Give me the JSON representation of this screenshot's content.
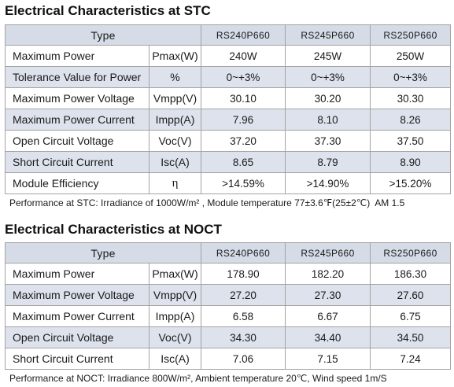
{
  "stc": {
    "title": "Electrical Characteristics at STC",
    "header": {
      "type_label": "Type",
      "models": [
        "RS240P660",
        "RS245P660",
        "RS250P660"
      ]
    },
    "rows": [
      {
        "parameter": "Maximum Power",
        "unit": "Pmax(W)",
        "values": [
          "240W",
          "245W",
          "250W"
        ]
      },
      {
        "parameter": "Tolerance Value for Power",
        "unit": "%",
        "values": [
          "0~+3%",
          "0~+3%",
          "0~+3%"
        ]
      },
      {
        "parameter": "Maximum Power Voltage",
        "unit": "Vmpp(V)",
        "values": [
          "30.10",
          "30.20",
          "30.30"
        ]
      },
      {
        "parameter": "Maximum Power Current",
        "unit": "Impp(A)",
        "values": [
          "7.96",
          "8.10",
          "8.26"
        ]
      },
      {
        "parameter": "Open Circuit Voltage",
        "unit": "Voc(V)",
        "values": [
          "37.20",
          "37.30",
          "37.50"
        ]
      },
      {
        "parameter": "Short Circuit Current",
        "unit": "Isc(A)",
        "values": [
          "8.65",
          "8.79",
          "8.90"
        ]
      },
      {
        "parameter": "Module Efficiency",
        "unit": "η",
        "values": [
          ">14.59%",
          ">14.90%",
          ">15.20%"
        ]
      }
    ],
    "note": "Performance at STC: Irradiance of 1000W/m² , Module temperature 77±3.6℉(25±2℃)  AM 1.5"
  },
  "noct": {
    "title": "Electrical Characteristics at NOCT",
    "header": {
      "type_label": "Type",
      "models": [
        "RS240P660",
        "RS245P660",
        "RS250P660"
      ]
    },
    "rows": [
      {
        "parameter": "Maximum Power",
        "unit": "Pmax(W)",
        "values": [
          "178.90",
          "182.20",
          "186.30"
        ]
      },
      {
        "parameter": "Maximum Power Voltage",
        "unit": "Vmpp(V)",
        "values": [
          "27.20",
          "27.30",
          "27.60"
        ]
      },
      {
        "parameter": "Maximum Power Current",
        "unit": "Impp(A)",
        "values": [
          "6.58",
          "6.67",
          "6.75"
        ]
      },
      {
        "parameter": "Open Circuit Voltage",
        "unit": "Voc(V)",
        "values": [
          "34.30",
          "34.40",
          "34.50"
        ]
      },
      {
        "parameter": "Short Circuit Current",
        "unit": "Isc(A)",
        "values": [
          "7.06",
          "7.15",
          "7.24"
        ]
      }
    ],
    "note": "Performance at NOCT: Irradiance 800W/m², Ambient temperature 20℃, Wind speed 1m/S"
  },
  "colors": {
    "header_bg": "#d5dbe7",
    "shaded_row_bg": "#dde2ec",
    "border": "#a3a3a3",
    "text": "#1a1a1a"
  }
}
